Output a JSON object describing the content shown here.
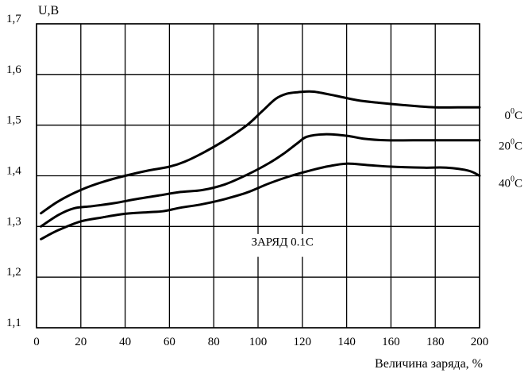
{
  "chart_data": {
    "type": "line",
    "title": "",
    "xlabel": "Величина заряда, %",
    "ylabel": "U,В",
    "xlim": [
      0,
      200
    ],
    "ylim": [
      1.1,
      1.7
    ],
    "x_ticks": [
      0,
      20,
      40,
      60,
      80,
      100,
      120,
      140,
      160,
      180,
      200
    ],
    "x_tick_labels": [
      "0",
      "20",
      "40",
      "60",
      "80",
      "100",
      "120",
      "140",
      "160",
      "180",
      "200"
    ],
    "y_ticks": [
      1.1,
      1.2,
      1.3,
      1.4,
      1.5,
      1.6,
      1.7
    ],
    "y_tick_labels": [
      "1,1",
      "1,2",
      "1,3",
      "1,4",
      "1,5",
      "1,6",
      "1,7"
    ],
    "grid": true,
    "annotation": "ЗАРЯД  0.1С",
    "series": [
      {
        "name_base": "0",
        "name_sup": "0",
        "name_unit": "С",
        "x": [
          2,
          10,
          20,
          30,
          40,
          50,
          60,
          67,
          75,
          85,
          95,
          102,
          108,
          113,
          118,
          125,
          135,
          145,
          155,
          170,
          180,
          190,
          200
        ],
        "y": [
          1.326,
          1.35,
          1.372,
          1.388,
          1.4,
          1.41,
          1.418,
          1.428,
          1.445,
          1.47,
          1.5,
          1.528,
          1.552,
          1.562,
          1.565,
          1.566,
          1.558,
          1.549,
          1.544,
          1.538,
          1.535,
          1.535,
          1.535
        ]
      },
      {
        "name_base": "20",
        "name_sup": "0",
        "name_unit": "С",
        "x": [
          2,
          10,
          17,
          25,
          35,
          45,
          55,
          65,
          75,
          85,
          95,
          105,
          112,
          118,
          122,
          130,
          140,
          148,
          158,
          170,
          185,
          200
        ],
        "y": [
          1.3,
          1.323,
          1.336,
          1.34,
          1.346,
          1.354,
          1.361,
          1.368,
          1.372,
          1.383,
          1.402,
          1.425,
          1.445,
          1.465,
          1.477,
          1.482,
          1.479,
          1.473,
          1.47,
          1.47,
          1.47,
          1.47
        ]
      },
      {
        "name_base": "40",
        "name_sup": "0",
        "name_unit": "С",
        "x": [
          2,
          10,
          20,
          30,
          40,
          50,
          57,
          65,
          75,
          85,
          95,
          105,
          115,
          125,
          132,
          140,
          150,
          160,
          175,
          185,
          195,
          200
        ],
        "y": [
          1.275,
          1.293,
          1.31,
          1.318,
          1.325,
          1.328,
          1.33,
          1.337,
          1.344,
          1.354,
          1.367,
          1.385,
          1.4,
          1.412,
          1.419,
          1.424,
          1.421,
          1.418,
          1.416,
          1.416,
          1.41,
          1.4
        ]
      }
    ]
  }
}
